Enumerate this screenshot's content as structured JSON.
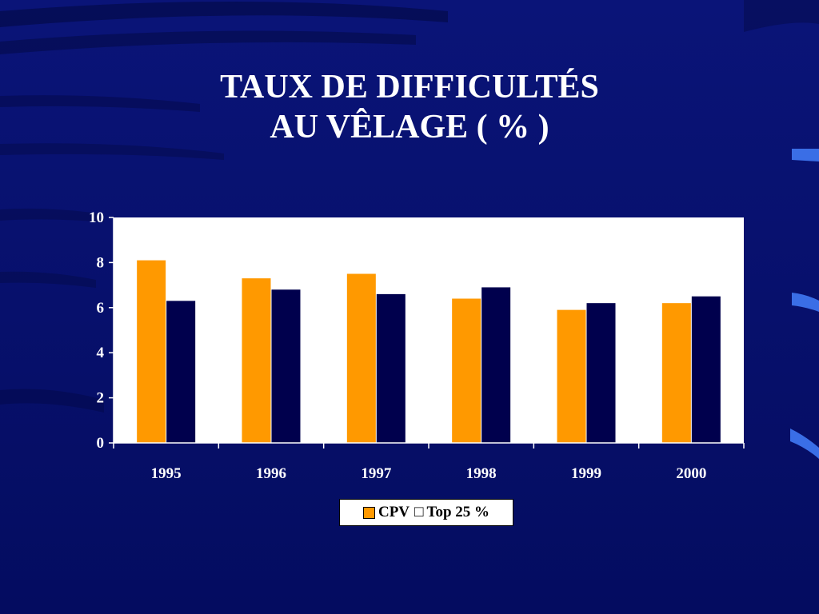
{
  "slide": {
    "title_line1": "TAUX DE DIFFICULTÉS",
    "title_line2": "AU VÊLAGE ( % )"
  },
  "colors": {
    "background": "#06106e",
    "title": "#ffffff",
    "plot_area": "#ffffff",
    "series_cpv": "#ff9900",
    "series_top25": "#00004d"
  },
  "legend": {
    "items": [
      {
        "label": "CPV",
        "color": "#ff9900",
        "swatch": "square"
      },
      {
        "label": "Top 25 %",
        "color": "#00004d",
        "swatch": "□"
      }
    ],
    "placement": "bottom"
  },
  "chart_data": {
    "type": "bar",
    "title": "TAUX DE DIFFICULTÉS AU VÊLAGE ( % )",
    "xlabel": "",
    "ylabel": "",
    "categories": [
      "1995",
      "1996",
      "1997",
      "1998",
      "1999",
      "2000"
    ],
    "series": [
      {
        "name": "CPV",
        "color": "#ff9900",
        "values": [
          8.1,
          7.3,
          7.5,
          6.4,
          5.9,
          6.2
        ]
      },
      {
        "name": "Top 25 %",
        "color": "#00004d",
        "values": [
          6.3,
          6.8,
          6.6,
          6.9,
          6.2,
          6.5
        ]
      }
    ],
    "ylim": [
      0,
      10
    ],
    "yticks": [
      0,
      2,
      4,
      6,
      8,
      10
    ],
    "grid": false,
    "legend_placement": "bottom"
  }
}
